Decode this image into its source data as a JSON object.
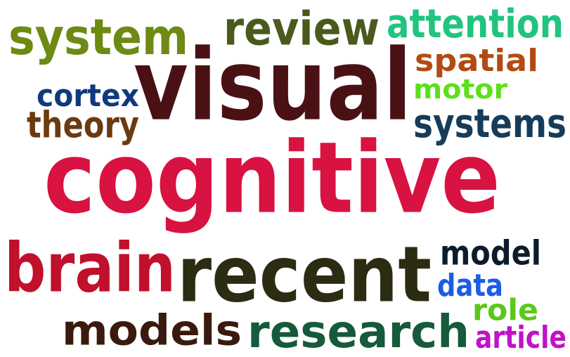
{
  "words": [
    {
      "id": "system",
      "text": "system",
      "color": "#6d8a12"
    },
    {
      "id": "review",
      "text": "review",
      "color": "#4a5a1c"
    },
    {
      "id": "attention",
      "text": "attention",
      "color": "#21c47e"
    },
    {
      "id": "visual",
      "text": "visual",
      "color": "#4a1114"
    },
    {
      "id": "spatial",
      "text": "spatial",
      "color": "#b24b12"
    },
    {
      "id": "motor",
      "text": "motor",
      "color": "#5ae01a"
    },
    {
      "id": "cortex",
      "text": "cortex",
      "color": "#0f3a7d"
    },
    {
      "id": "theory",
      "text": "theory",
      "color": "#6a3a10"
    },
    {
      "id": "systems",
      "text": "systems",
      "color": "#163c5a"
    },
    {
      "id": "cognitive",
      "text": "cognitive",
      "color": "#d81241"
    },
    {
      "id": "brain",
      "text": "brain",
      "color": "#c0102c"
    },
    {
      "id": "recent",
      "text": "recent",
      "color": "#2c2c12"
    },
    {
      "id": "model",
      "text": "model",
      "color": "#0c1c2c"
    },
    {
      "id": "data",
      "text": "data",
      "color": "#1e5ce6"
    },
    {
      "id": "role",
      "text": "role",
      "color": "#5ac81a"
    },
    {
      "id": "models",
      "text": "models",
      "color": "#3a1a0e"
    },
    {
      "id": "research",
      "text": "research",
      "color": "#155a3a"
    },
    {
      "id": "article",
      "text": "article",
      "color": "#c012c8"
    }
  ]
}
